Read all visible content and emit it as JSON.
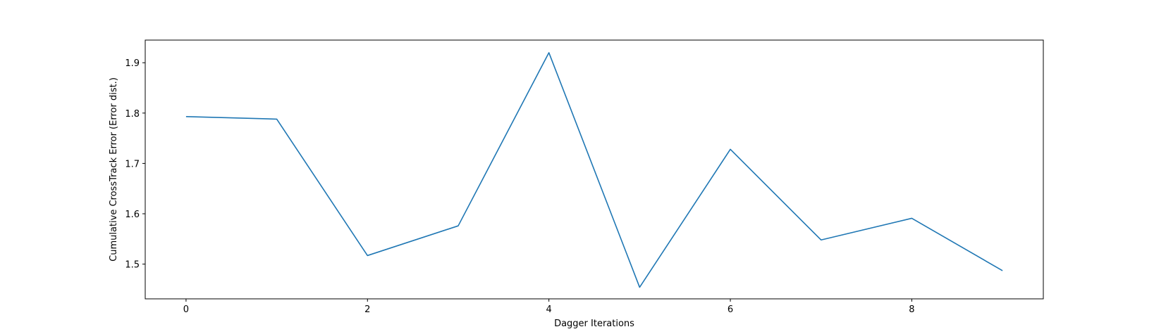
{
  "chart_data": {
    "type": "line",
    "title": "",
    "xlabel": "Dagger Iterations",
    "ylabel": "Cumulative CrossTrack Error (Error dist.)",
    "x": [
      0,
      1,
      2,
      3,
      4,
      5,
      6,
      7,
      8,
      9
    ],
    "series": [
      {
        "name": "error",
        "color": "#1f77b4",
        "values": [
          1.793,
          1.788,
          1.517,
          1.576,
          1.92,
          1.454,
          1.728,
          1.548,
          1.591,
          1.487
        ]
      }
    ],
    "xlim": [
      -0.45,
      9.45
    ],
    "ylim": [
      1.431,
      1.945
    ],
    "xticks": [
      0,
      2,
      4,
      6,
      8
    ],
    "xtick_labels": [
      "0",
      "2",
      "4",
      "6",
      "8"
    ],
    "yticks": [
      1.5,
      1.6,
      1.7,
      1.8,
      1.9
    ],
    "ytick_labels": [
      "1.5",
      "1.6",
      "1.7",
      "1.8",
      "1.9"
    ],
    "grid": false,
    "legend": "none"
  }
}
